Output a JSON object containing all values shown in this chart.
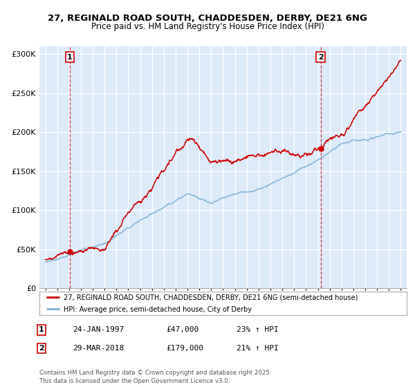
{
  "title_line1": "27, REGINALD ROAD SOUTH, CHADDESDEN, DERBY, DE21 6NG",
  "title_line2": "Price paid vs. HM Land Registry's House Price Index (HPI)",
  "background_color": "#eaf2fb",
  "plot_bg_color": "#ddeaf8",
  "grid_color": "#ffffff",
  "red_line_color": "#cc0000",
  "blue_line_color": "#7ab0d4",
  "sale1_label": "1",
  "sale1_price": 47000,
  "sale1_year": 1997.07,
  "sale2_label": "2",
  "sale2_price": 179000,
  "sale2_year": 2018.25,
  "legend_line1": "27, REGINALD ROAD SOUTH, CHADDESDEN, DERBY, DE21 6NG (semi-detached house)",
  "legend_line2": "HPI: Average price, semi-detached house, City of Derby",
  "annotation1_date": "24-JAN-1997",
  "annotation1_price": "£47,000",
  "annotation1_hpi": "23% ↑ HPI",
  "annotation2_date": "29-MAR-2018",
  "annotation2_price": "£179,000",
  "annotation2_hpi": "21% ↑ HPI",
  "footer": "Contains HM Land Registry data © Crown copyright and database right 2025.\nThis data is licensed under the Open Government Licence v3.0.",
  "xmin": 1994.5,
  "xmax": 2025.5,
  "ymin": 0,
  "ymax": 310000
}
